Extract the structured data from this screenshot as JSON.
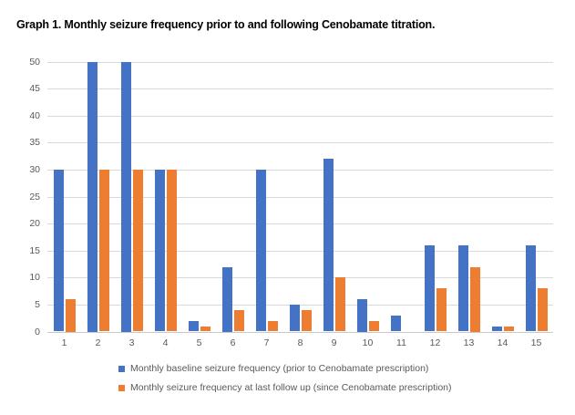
{
  "chart_data": {
    "type": "bar",
    "title": "Graph 1. Monthly seizure frequency prior to and following Cenobamate titration.",
    "categories": [
      "1",
      "2",
      "3",
      "4",
      "5",
      "6",
      "7",
      "8",
      "9",
      "10",
      "11",
      "12",
      "13",
      "14",
      "15"
    ],
    "series": [
      {
        "name": "Monthly baseline seizure frequency (prior to Cenobamate prescription)",
        "color": "#4472C4",
        "values": [
          30,
          50,
          50,
          30,
          2,
          12,
          30,
          5,
          32,
          6,
          3,
          16,
          16,
          1,
          16
        ]
      },
      {
        "name": "Monthly seizure frequency at last follow up (since Cenobamate prescription)",
        "color": "#ED7D31",
        "values": [
          6,
          30,
          30,
          30,
          1,
          4,
          2,
          4,
          10,
          2,
          0,
          8,
          12,
          1,
          8
        ]
      }
    ],
    "xlabel": "",
    "ylabel": "",
    "ylim": [
      0,
      50
    ],
    "yticks": [
      0,
      5,
      10,
      15,
      20,
      25,
      30,
      35,
      40,
      45,
      50
    ],
    "grid": true,
    "legend_position": "bottom"
  },
  "colors": {
    "gridline": "#D9D9D9",
    "axis_line": "#C9C9C9",
    "tick_text": "#595959",
    "legend_text": "#595959",
    "title_text": "#000000",
    "background": "#FFFFFF"
  }
}
